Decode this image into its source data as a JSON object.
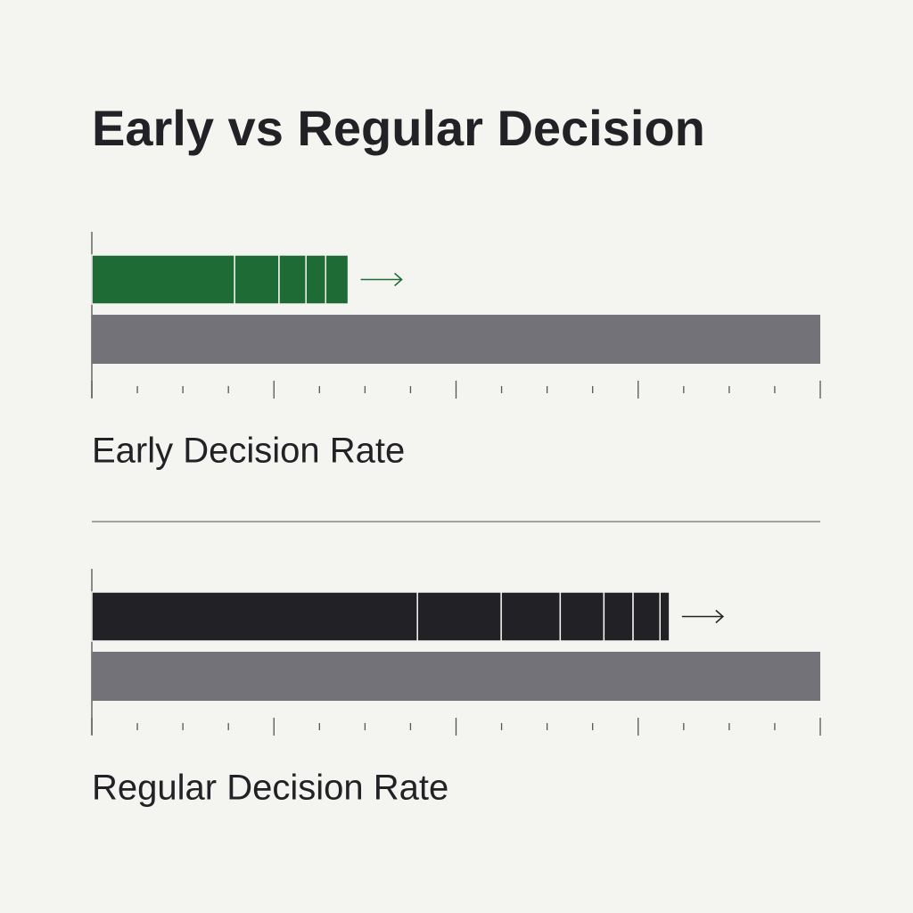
{
  "title": "Early vs Regular Decision",
  "chart_data": [
    {
      "type": "stacked-bar",
      "xlabel": "Early Decision Rate",
      "color": "#1e6b35",
      "series": [
        {
          "values": [
            19.6,
            6.1,
            3.7,
            2.7,
            3.1
          ]
        }
      ],
      "xlim": [
        0,
        100
      ],
      "xticks": [
        0,
        6.25,
        12.5,
        18.75,
        25,
        31.25,
        37.5,
        43.75,
        50,
        56.25,
        62.5,
        68.75,
        75,
        81.25,
        87.5,
        93.75,
        100
      ]
    },
    {
      "type": "stacked-bar",
      "xlabel": "Regular Decision Rate",
      "color": "#222226",
      "series": [
        {
          "values": [
            44.7,
            11.5,
            8.1,
            6.0,
            4.0,
            3.7,
            1.3
          ]
        }
      ],
      "xlim": [
        0,
        100
      ],
      "xticks": [
        0,
        6.25,
        12.5,
        18.75,
        25,
        31.25,
        37.5,
        43.75,
        50,
        56.25,
        62.5,
        68.75,
        75,
        81.25,
        87.5,
        93.75,
        100
      ]
    }
  ]
}
